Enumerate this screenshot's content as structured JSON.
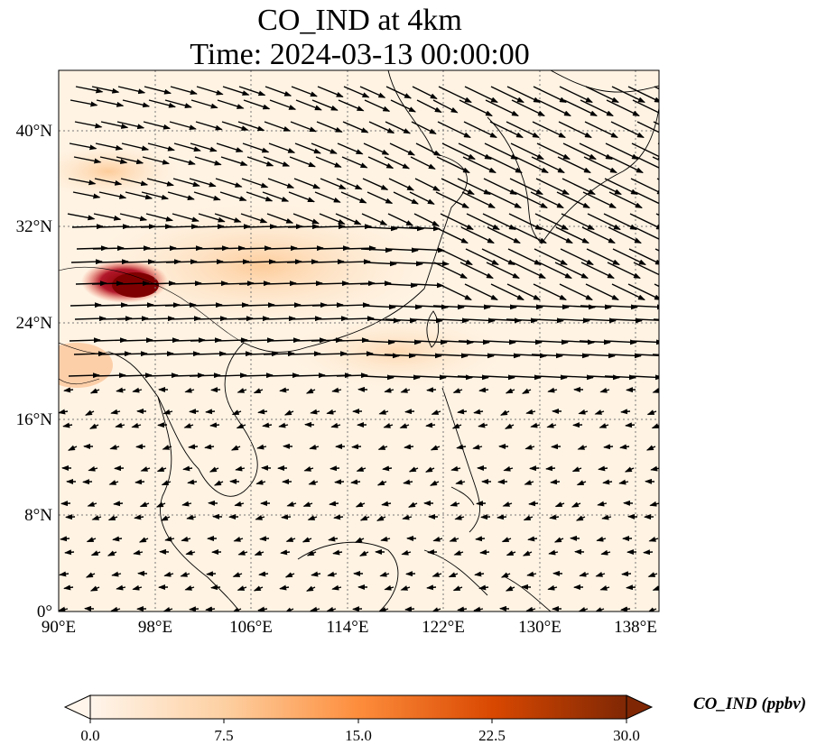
{
  "title": {
    "line1": "CO_IND at 4km",
    "line2": "Time: 2024-03-13 00:00:00"
  },
  "map": {
    "lon_ticks": [
      "90°E",
      "98°E",
      "106°E",
      "114°E",
      "122°E",
      "130°E",
      "138°E"
    ],
    "lat_ticks": [
      "40°N",
      "32°N",
      "24°N",
      "16°N",
      "8°N",
      "0°"
    ],
    "lon_range": [
      90,
      140
    ],
    "lat_range": [
      0,
      45
    ],
    "gridlines": "dotted"
  },
  "colorbar": {
    "label": "CO_IND (ppbv)",
    "ticks": [
      "0.0",
      "7.5",
      "15.0",
      "22.5",
      "30.0"
    ],
    "range": [
      0,
      30
    ],
    "colormap": [
      "#fff5eb",
      "#fdd0a2",
      "#fd8d3c",
      "#d94801",
      "#7f2704"
    ],
    "extend": "both"
  },
  "colors": {
    "hotspot": "#a50f15",
    "background": "#fff3e3",
    "coast": "#000000"
  }
}
